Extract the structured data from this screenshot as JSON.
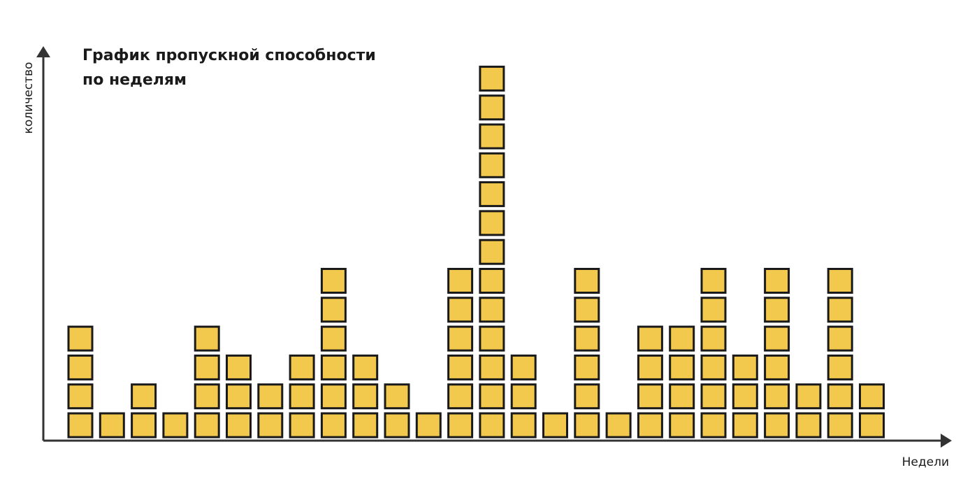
{
  "chart_data": {
    "type": "bar",
    "title_lines": [
      "График пропускной способности",
      "по неделям"
    ],
    "xlabel": "Недели",
    "ylabel": "количество",
    "values": [
      4,
      1,
      2,
      1,
      4,
      3,
      2,
      3,
      6,
      3,
      2,
      1,
      6,
      13,
      3,
      1,
      6,
      1,
      4,
      4,
      6,
      3,
      6,
      2,
      6,
      2
    ],
    "grid": false,
    "legend": "none",
    "colors": {
      "cell": "#f2c94c",
      "outline": "#1a1a1a",
      "axis": "#333333"
    }
  }
}
